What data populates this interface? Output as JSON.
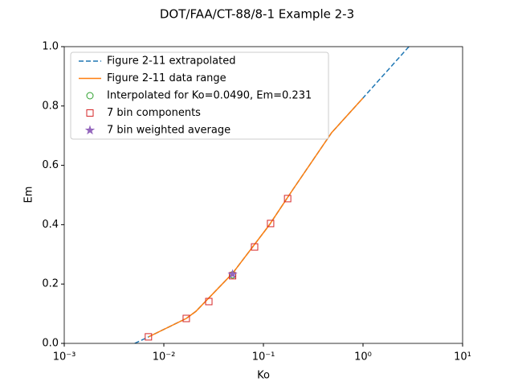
{
  "chart_data": {
    "type": "line",
    "title": "DOT/FAA/CT-88/8-1 Example 2-3",
    "x_label": "Ko",
    "y_label": "Em",
    "log_x": true,
    "xlim": [
      0.001,
      10
    ],
    "ylim": [
      0,
      1
    ],
    "xticks": [
      {
        "value": 0.001,
        "label": "10⁻³"
      },
      {
        "value": 0.01,
        "label": "10⁻²"
      },
      {
        "value": 0.1,
        "label": "10⁻¹"
      },
      {
        "value": 1,
        "label": "10⁰"
      },
      {
        "value": 10,
        "label": "10¹"
      }
    ],
    "yticks": [
      {
        "value": 0,
        "label": "0.0"
      },
      {
        "value": 0.2,
        "label": "0.2"
      },
      {
        "value": 0.4,
        "label": "0.4"
      },
      {
        "value": 0.6,
        "label": "0.6"
      },
      {
        "value": 0.8,
        "label": "0.8"
      },
      {
        "value": 1,
        "label": "1.0"
      }
    ],
    "legend": "upper left",
    "series": [
      {
        "name": "Figure 2-11 extrapolated",
        "color": "#1f77b4",
        "line": "dashed",
        "marker": "none",
        "x": [
          0.0051,
          0.00703,
          0.0168,
          0.021,
          0.049,
          0.114,
          0.199,
          0.484,
          1.0,
          2.89
        ],
        "values": [
          0,
          0.022,
          0.084,
          0.108,
          0.236,
          0.398,
          0.52,
          0.71,
          0.827,
          1.0
        ]
      },
      {
        "name": "Figure 2-11 data range",
        "color": "#ff7f0e",
        "line": "solid",
        "marker": "none",
        "x": [
          0.00703,
          0.0168,
          0.021,
          0.049,
          0.114,
          0.199,
          0.484,
          1.0
        ],
        "values": [
          0.022,
          0.084,
          0.108,
          0.236,
          0.398,
          0.52,
          0.71,
          0.827
        ]
      },
      {
        "name": "Interpolated for Ko=0.0490, Em=0.231",
        "color": "#2ca02c",
        "line": "none",
        "marker": "circle",
        "x": [
          0.049
        ],
        "values": [
          0.231
        ]
      },
      {
        "name": "7 bin components",
        "color": "#d62728",
        "line": "none",
        "marker": "square",
        "x": [
          0.007,
          0.0168,
          0.0283,
          0.049,
          0.0815,
          0.118,
          0.175
        ],
        "values": [
          0.022,
          0.084,
          0.141,
          0.228,
          0.325,
          0.404,
          0.488
        ]
      },
      {
        "name": "7 bin weighted average",
        "color": "#9467bd",
        "line": "none",
        "marker": "star",
        "x": [
          0.049
        ],
        "values": [
          0.233
        ]
      }
    ]
  }
}
